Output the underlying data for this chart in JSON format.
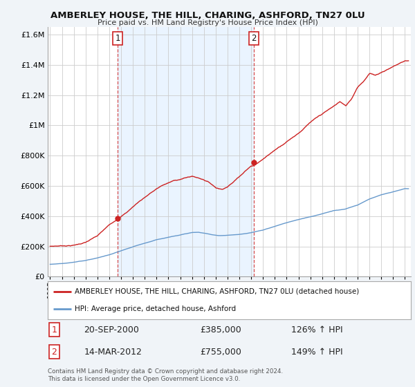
{
  "title": "AMBERLEY HOUSE, THE HILL, CHARING, ASHFORD, TN27 0LU",
  "subtitle": "Price paid vs. HM Land Registry's House Price Index (HPI)",
  "legend_entry1": "AMBERLEY HOUSE, THE HILL, CHARING, ASHFORD, TN27 0LU (detached house)",
  "legend_entry2": "HPI: Average price, detached house, Ashford",
  "annotation1_label": "1",
  "annotation1_date": "20-SEP-2000",
  "annotation1_price": "£385,000",
  "annotation1_hpi": "126% ↑ HPI",
  "annotation2_label": "2",
  "annotation2_date": "14-MAR-2012",
  "annotation2_price": "£755,000",
  "annotation2_hpi": "149% ↑ HPI",
  "footer": "Contains HM Land Registry data © Crown copyright and database right 2024.\nThis data is licensed under the Open Government Licence v3.0.",
  "sale1_year": 2000.72,
  "sale1_value": 385000,
  "sale2_year": 2012.2,
  "sale2_value": 755000,
  "red_color": "#cc2222",
  "blue_color": "#6699cc",
  "shade_color": "#ddeeff",
  "bg_color": "#f0f4f8",
  "plot_bg": "#ffffff",
  "grid_color": "#cccccc",
  "ylim": [
    0,
    1650000
  ],
  "xlim_start": 1994.8,
  "xlim_end": 2025.5,
  "red_keypoints_x": [
    1995.0,
    1996.0,
    1997.0,
    1998.0,
    1999.0,
    2000.0,
    2000.72,
    2001.5,
    2002.5,
    2003.5,
    2004.5,
    2005.5,
    2006.5,
    2007.0,
    2007.5,
    2008.0,
    2008.5,
    2009.0,
    2009.5,
    2010.0,
    2010.5,
    2011.0,
    2011.5,
    2012.0,
    2012.2,
    2013.0,
    2014.0,
    2015.0,
    2016.0,
    2017.0,
    2018.0,
    2019.0,
    2019.5,
    2020.0,
    2020.5,
    2021.0,
    2021.5,
    2022.0,
    2022.5,
    2023.0,
    2023.5,
    2024.0,
    2024.5,
    2025.0
  ],
  "red_keypoints_y": [
    200000,
    205000,
    210000,
    230000,
    270000,
    340000,
    385000,
    430000,
    500000,
    560000,
    610000,
    640000,
    660000,
    670000,
    660000,
    650000,
    630000,
    600000,
    590000,
    610000,
    640000,
    680000,
    720000,
    750000,
    755000,
    800000,
    860000,
    920000,
    980000,
    1050000,
    1100000,
    1150000,
    1180000,
    1150000,
    1200000,
    1280000,
    1320000,
    1370000,
    1360000,
    1380000,
    1400000,
    1420000,
    1440000,
    1460000
  ],
  "blue_keypoints_x": [
    1995.0,
    1996.0,
    1997.0,
    1998.0,
    1999.0,
    2000.0,
    2001.0,
    2002.0,
    2003.0,
    2004.0,
    2005.0,
    2006.0,
    2007.0,
    2007.5,
    2008.0,
    2008.5,
    2009.0,
    2009.5,
    2010.0,
    2010.5,
    2011.0,
    2011.5,
    2012.0,
    2013.0,
    2014.0,
    2015.0,
    2016.0,
    2017.0,
    2018.0,
    2019.0,
    2020.0,
    2021.0,
    2022.0,
    2023.0,
    2024.0,
    2025.0
  ],
  "blue_keypoints_y": [
    82000,
    88000,
    96000,
    108000,
    125000,
    145000,
    170000,
    195000,
    218000,
    240000,
    258000,
    275000,
    290000,
    292000,
    285000,
    278000,
    272000,
    270000,
    272000,
    275000,
    278000,
    282000,
    288000,
    305000,
    330000,
    355000,
    375000,
    395000,
    415000,
    435000,
    445000,
    470000,
    510000,
    540000,
    560000,
    580000
  ]
}
